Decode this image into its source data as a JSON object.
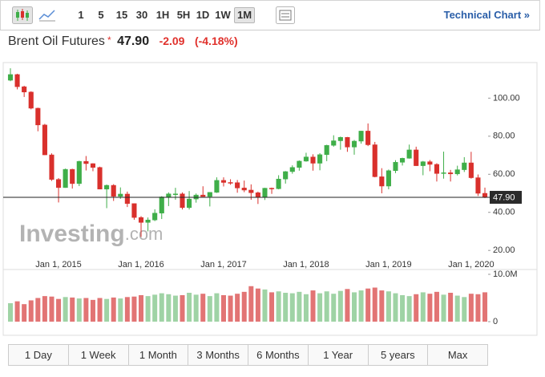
{
  "toolbar": {
    "intervals": [
      "1",
      "5",
      "15",
      "30",
      "1H",
      "5H",
      "1D",
      "1W",
      "1M"
    ],
    "active": "1M",
    "link": "Technical Chart »"
  },
  "header": {
    "name": "Brent Oil Futures",
    "star": "*",
    "price": "47.90",
    "change": "-2.09",
    "change_pct": "(-4.18%)"
  },
  "chart_data": {
    "type": "candlestick",
    "watermark": [
      "Investing",
      ".com"
    ],
    "categories": [
      null,
      null,
      null,
      null,
      null,
      null,
      null,
      "Jan 1, 2015",
      null,
      null,
      null,
      null,
      null,
      null,
      null,
      null,
      null,
      null,
      null,
      "Jan 1, 2016",
      null,
      null,
      null,
      null,
      null,
      null,
      null,
      null,
      null,
      null,
      null,
      "Jan 1, 2017",
      null,
      null,
      null,
      null,
      null,
      null,
      null,
      null,
      null,
      null,
      null,
      "Jan 1, 2018",
      null,
      null,
      null,
      null,
      null,
      null,
      null,
      null,
      null,
      null,
      null,
      "Jan 1, 2019",
      null,
      null,
      null,
      null,
      null,
      null,
      null,
      null,
      null,
      null,
      null,
      "Jan 1, 2020",
      null,
      null
    ],
    "open": [
      109.4,
      112.4,
      106.0,
      103.2,
      94.7,
      85.9,
      70.2,
      57.3,
      53.0,
      62.6,
      55.1,
      66.8,
      65.6,
      63.6,
      52.2,
      54.2,
      48.4,
      49.6,
      44.6,
      37.3,
      34.7,
      36.0,
      39.6,
      48.1,
      49.6,
      49.7,
      42.5,
      47.0,
      49.1,
      48.3,
      50.5,
      56.8,
      55.7,
      55.6,
      52.8,
      51.7,
      50.3,
      47.9,
      52.7,
      52.4,
      57.5,
      61.4,
      63.6,
      66.9,
      69.1,
      65.8,
      70.3,
      75.2,
      77.6,
      79.4,
      74.3,
      77.4,
      82.7,
      75.5,
      58.7,
      53.8,
      61.9,
      66.3,
      68.4,
      72.8,
      64.5,
      66.6,
      65.2,
      60.4,
      60.8,
      60.2,
      62.4,
      66.0,
      58.2,
      50.0
    ],
    "high": [
      115.7,
      112.8,
      106.5,
      103.6,
      95.0,
      86.5,
      71.0,
      58.0,
      63.0,
      62.9,
      67.1,
      69.6,
      65.8,
      64.0,
      54.6,
      54.8,
      53.1,
      50.9,
      44.7,
      38.0,
      37.3,
      41.6,
      48.5,
      50.5,
      52.9,
      50.5,
      51.2,
      49.9,
      53.7,
      50.6,
      58.4,
      58.4,
      57.4,
      57.0,
      56.7,
      54.7,
      50.9,
      52.9,
      53.0,
      59.5,
      61.7,
      64.7,
      67.3,
      71.3,
      70.5,
      71.1,
      75.5,
      80.5,
      79.8,
      79.6,
      78.0,
      82.8,
      86.7,
      77.0,
      63.2,
      62.5,
      67.4,
      68.7,
      75.6,
      74.5,
      67.0,
      67.5,
      65.8,
      71.9,
      62.3,
      64.5,
      69.0,
      71.8,
      59.9,
      53.0
    ],
    "low": [
      108.9,
      104.6,
      100.6,
      94.1,
      82.6,
      70.1,
      56.5,
      45.2,
      52.9,
      52.5,
      53.8,
      62.0,
      61.6,
      52.1,
      42.2,
      46.0,
      47.1,
      42.8,
      36.1,
      27.1,
      30.0,
      35.4,
      36.5,
      43.3,
      46.6,
      41.5,
      41.5,
      45.1,
      48.4,
      43.1,
      50.2,
      53.6,
      54.5,
      50.3,
      50.6,
      46.6,
      44.4,
      46.5,
      49.7,
      52.1,
      55.1,
      60.3,
      61.9,
      66.6,
      61.9,
      62.1,
      66.9,
      74.5,
      72.9,
      71.8,
      70.3,
      76.1,
      74.8,
      58.4,
      50.0,
      52.1,
      60.6,
      64.6,
      68.2,
      64.4,
      59.5,
      61.6,
      56.2,
      57.7,
      56.2,
      59.4,
      61.2,
      57.7,
      48.6,
      47.5
    ],
    "close": [
      112.4,
      106.0,
      103.2,
      94.7,
      85.9,
      70.2,
      57.3,
      53.0,
      62.6,
      55.1,
      66.8,
      65.6,
      63.6,
      52.2,
      54.2,
      48.4,
      49.6,
      44.6,
      37.3,
      34.7,
      36.0,
      39.6,
      48.1,
      49.7,
      49.7,
      42.5,
      47.0,
      49.1,
      48.3,
      50.5,
      56.8,
      55.7,
      55.6,
      52.8,
      51.7,
      50.3,
      47.9,
      52.7,
      52.4,
      57.5,
      61.4,
      63.6,
      66.9,
      69.1,
      65.8,
      70.3,
      75.2,
      77.6,
      79.4,
      74.3,
      77.4,
      82.7,
      75.5,
      58.7,
      53.8,
      61.9,
      66.3,
      68.4,
      72.8,
      64.5,
      66.6,
      65.2,
      60.4,
      60.8,
      60.2,
      62.4,
      66.0,
      58.2,
      50.0,
      47.9
    ],
    "volume": [
      3900000,
      4300000,
      3700000,
      4500000,
      5000000,
      5400000,
      5300000,
      4800000,
      5200000,
      5100000,
      4900000,
      5000000,
      4600000,
      5000000,
      4800000,
      5100000,
      4900000,
      5200000,
      5300000,
      5600000,
      5400000,
      5700000,
      6000000,
      5800000,
      5500000,
      5600000,
      6100000,
      5700000,
      5900000,
      5400000,
      6000000,
      5600000,
      5500000,
      5900000,
      6300000,
      7500000,
      7000000,
      6800000,
      6200000,
      6400000,
      6100000,
      6000000,
      6300000,
      5800000,
      6600000,
      6000000,
      6400000,
      5900000,
      6500000,
      6900000,
      6200000,
      6600000,
      7000000,
      7200000,
      6600000,
      6400000,
      6000000,
      5600000,
      5400000,
      5800000,
      6200000,
      5900000,
      6300000,
      5700000,
      6100000,
      5500000,
      5200000,
      5900000,
      5800000,
      6200000
    ],
    "up_color": "#3fae49",
    "down_color": "#d9302c",
    "volume_up_color": "#9fd3a5",
    "volume_down_color": "#e27474",
    "ylim": [
      12.5,
      117
    ],
    "yticks": [
      {
        "value": 20,
        "label": "20.00"
      },
      {
        "value": 40,
        "label": "40.00"
      },
      {
        "value": 60,
        "label": "60.00"
      },
      {
        "value": 80,
        "label": "80.00"
      },
      {
        "value": 100,
        "label": "100.00"
      }
    ],
    "volume_ylim": [
      0,
      10000000
    ],
    "volume_ticks": [
      0,
      {
        "value": 10000000,
        "label": "10.0M"
      }
    ],
    "last_price": {
      "value": 47.9,
      "label": "47.90"
    },
    "grid": false
  },
  "ranges": [
    "1 Day",
    "1 Week",
    "1 Month",
    "3 Months",
    "6 Months",
    "1 Year",
    "5 years",
    "Max"
  ]
}
